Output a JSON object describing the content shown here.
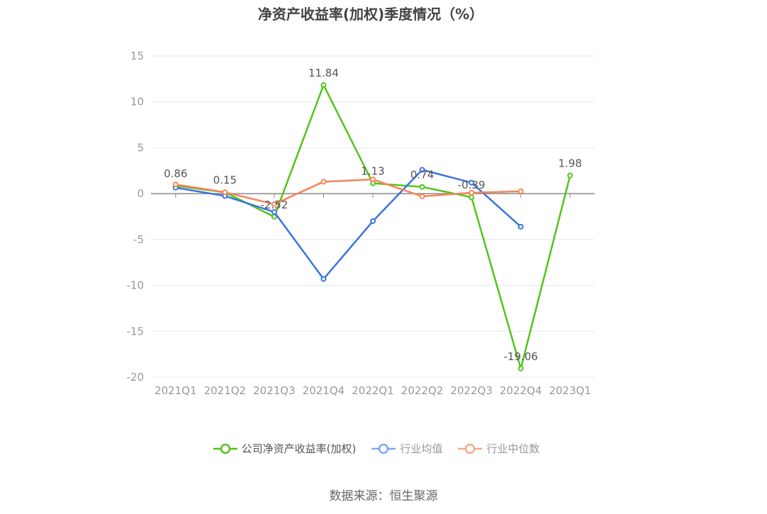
{
  "title": "净资产收益率(加权)季度情况（%）",
  "source": "数据来源：恒生聚源",
  "legend": [
    {
      "label": "公司净资产收益率(加权)",
      "color": "#52c41a",
      "faded": false
    },
    {
      "label": "行业均值",
      "color": "#7ea6f2",
      "faded": true
    },
    {
      "label": "行业中位数",
      "color": "#f5a98a",
      "faded": true
    }
  ],
  "chart_data": {
    "type": "line",
    "title": "净资产收益率(加权)季度情况（%）",
    "xlabel": "",
    "ylabel": "",
    "ylim": [
      -20,
      15
    ],
    "yticks": [
      15,
      10,
      5,
      0,
      -5,
      -10,
      -15,
      -20
    ],
    "grid": true,
    "legend_position": "bottom",
    "categories": [
      "2021Q1",
      "2021Q2",
      "2021Q3",
      "2021Q4",
      "2022Q1",
      "2022Q2",
      "2022Q3",
      "2022Q4",
      "2023Q1"
    ],
    "series": [
      {
        "name": "公司净资产收益率(加权)",
        "color": "#52c41a",
        "values": [
          0.86,
          0.15,
          -2.52,
          11.84,
          1.13,
          0.74,
          -0.39,
          -19.06,
          1.98
        ],
        "labels": [
          "0.86",
          "0.15",
          "-2.52",
          "11.84",
          "1.13",
          "0.74",
          "-0.39",
          "-19.06",
          "1.98"
        ]
      },
      {
        "name": "行业均值",
        "color": "#3b74e0",
        "values": [
          0.65,
          -0.25,
          -2.0,
          -9.3,
          -3.0,
          2.6,
          1.2,
          -3.6,
          null
        ]
      },
      {
        "name": "行业中位数",
        "color": "#f5845a",
        "values": [
          1.0,
          0.15,
          -1.15,
          1.3,
          1.55,
          -0.3,
          0.1,
          0.25,
          null
        ]
      }
    ],
    "source": "数据来源：恒生聚源"
  }
}
